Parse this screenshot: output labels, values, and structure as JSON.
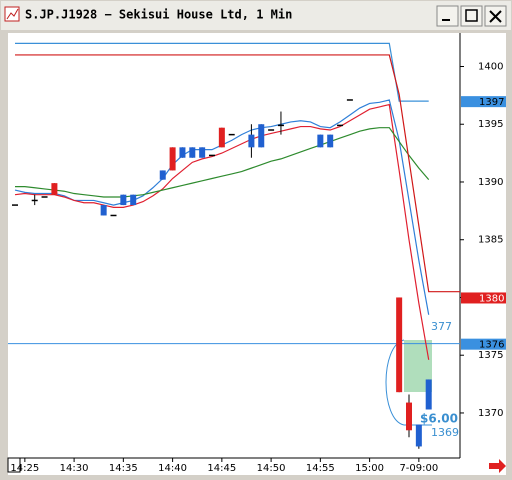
{
  "window": {
    "title": "S.JP.J1928 − Sekisui House Ltd, 1 Min"
  },
  "chart_data": {
    "type": "candlestick",
    "categories": [
      null,
      "14:25",
      null,
      null,
      null,
      null,
      "14:30",
      null,
      null,
      null,
      null,
      "14:35",
      null,
      null,
      null,
      null,
      "14:40",
      null,
      null,
      null,
      null,
      "14:45",
      null,
      null,
      null,
      null,
      "14:50",
      null,
      null,
      null,
      null,
      "14:55",
      null,
      null,
      null,
      null,
      "15:00",
      null,
      null,
      null,
      null,
      "7-09:00",
      null
    ],
    "open": [
      1388.0,
      null,
      1388.4,
      1388.7,
      1389.9,
      null,
      null,
      null,
      null,
      1387.1,
      1387.1,
      1388.0,
      1388.0,
      null,
      null,
      1390.2,
      1393.0,
      1392.1,
      1392.1,
      1392.1,
      1392.3,
      1394.7,
      1394.1,
      null,
      1393.0,
      1393.0,
      1394.5,
      1394.9,
      null,
      null,
      null,
      1393.0,
      1393.0,
      1394.9,
      1397.1,
      null,
      null,
      null,
      null,
      1380.0,
      1370.9,
      1367.1,
      1370.3
    ],
    "high": [
      1388.0,
      null,
      1388.9,
      1388.7,
      1389.9,
      null,
      null,
      null,
      null,
      1388.0,
      1387.1,
      1388.9,
      1388.9,
      null,
      null,
      1391.0,
      1393.0,
      1393.0,
      1393.0,
      1393.0,
      1392.3,
      1394.7,
      1394.1,
      null,
      1395.0,
      1395.0,
      1394.5,
      1396.1,
      null,
      null,
      null,
      1394.1,
      1394.1,
      1394.9,
      1397.1,
      null,
      null,
      null,
      null,
      1380.0,
      1371.6,
      1369.0,
      1372.9
    ],
    "low": [
      1388.0,
      null,
      1388.0,
      1388.7,
      1388.9,
      null,
      null,
      null,
      null,
      1387.1,
      1387.1,
      1388.0,
      1388.0,
      null,
      null,
      1390.2,
      1391.0,
      1392.1,
      1392.1,
      1392.1,
      1392.3,
      1393.0,
      1394.1,
      null,
      1392.1,
      1393.0,
      1394.5,
      1394.1,
      null,
      null,
      null,
      1393.0,
      1393.0,
      1394.9,
      1397.1,
      null,
      null,
      null,
      null,
      1371.8,
      1367.9,
      1366.9,
      1370.3
    ],
    "close": [
      1388.0,
      null,
      1388.4,
      1388.7,
      1388.9,
      null,
      null,
      null,
      null,
      1388.0,
      1387.1,
      1388.9,
      1388.9,
      null,
      null,
      1391.0,
      1391.0,
      1393.0,
      1393.0,
      1393.0,
      1392.3,
      1393.0,
      1394.1,
      null,
      1394.1,
      1395.0,
      1394.5,
      1394.9,
      null,
      null,
      null,
      1394.1,
      1394.1,
      1394.9,
      1397.1,
      null,
      null,
      null,
      null,
      1371.8,
      1368.5,
      1369.0,
      1372.9
    ],
    "up_color": "#2060d0",
    "down_color": "#e02020",
    "series": [
      {
        "color": "#2f7fd8",
        "values": [
          1389.3,
          1389.1,
          1389.0,
          1389.0,
          1389.0,
          1388.8,
          1388.4,
          1388.4,
          1388.4,
          1388.2,
          1388.0,
          1388.2,
          1388.4,
          1388.8,
          1389.5,
          1390.3,
          1391.5,
          1392.3,
          1392.8,
          1392.8,
          1392.8,
          1393.2,
          1393.6,
          1394.1,
          1394.5,
          1394.7,
          1394.8,
          1395.0,
          1395.2,
          1395.3,
          1395.2,
          1394.8,
          1394.7,
          1395.2,
          1395.8,
          1396.4,
          1396.8,
          1396.9,
          1397.1,
          1393.6,
          1388.4,
          1383.2,
          1378.5
        ]
      },
      {
        "color": "#e02030",
        "values": [
          1388.9,
          1389.0,
          1388.9,
          1388.9,
          1388.9,
          1388.7,
          1388.4,
          1388.2,
          1388.2,
          1388.0,
          1387.8,
          1387.8,
          1388.0,
          1388.3,
          1388.8,
          1389.4,
          1390.3,
          1391.0,
          1391.7,
          1392.0,
          1392.2,
          1392.5,
          1392.9,
          1393.3,
          1393.7,
          1394.0,
          1394.2,
          1394.4,
          1394.6,
          1394.8,
          1394.8,
          1394.6,
          1394.5,
          1394.8,
          1395.3,
          1395.8,
          1396.3,
          1396.5,
          1396.7,
          1391.0,
          1385.0,
          1379.5,
          1374.6
        ]
      },
      {
        "color": "#2e8b2e",
        "values": [
          1389.6,
          1389.6,
          1389.5,
          1389.4,
          1389.3,
          1389.2,
          1389.0,
          1388.9,
          1388.8,
          1388.7,
          1388.7,
          1388.7,
          1388.8,
          1388.9,
          1389.1,
          1389.3,
          1389.5,
          1389.7,
          1389.9,
          1390.1,
          1390.3,
          1390.5,
          1390.7,
          1390.9,
          1391.2,
          1391.5,
          1391.8,
          1392.0,
          1392.3,
          1392.6,
          1392.9,
          1393.2,
          1393.5,
          1393.8,
          1394.1,
          1394.4,
          1394.6,
          1394.7,
          1394.7,
          1393.5,
          1392.3,
          1391.2,
          1390.2
        ]
      },
      {
        "color": "#3a90d8",
        "values": [
          1402.0,
          1402.0,
          1402.0,
          1402.0,
          1402.0,
          1402.0,
          1402.0,
          1402.0,
          1402.0,
          1402.0,
          1402.0,
          1402.0,
          1402.0,
          1402.0,
          1402.0,
          1402.0,
          1402.0,
          1402.0,
          1402.0,
          1402.0,
          1402.0,
          1402.0,
          1402.0,
          1402.0,
          1402.0,
          1402.0,
          1402.0,
          1402.0,
          1402.0,
          1402.0,
          1402.0,
          1402.0,
          1402.0,
          1402.0,
          1402.0,
          1402.0,
          1402.0,
          1402.0,
          1402.0,
          1397.0,
          1397.0,
          1397.0,
          1397.0
        ]
      },
      {
        "color": "#d01818",
        "values": [
          1401.0,
          1401.0,
          1401.0,
          1401.0,
          1401.0,
          1401.0,
          1401.0,
          1401.0,
          1401.0,
          1401.0,
          1401.0,
          1401.0,
          1401.0,
          1401.0,
          1401.0,
          1401.0,
          1401.0,
          1401.0,
          1401.0,
          1401.0,
          1401.0,
          1401.0,
          1401.0,
          1401.0,
          1401.0,
          1401.0,
          1401.0,
          1401.0,
          1401.0,
          1401.0,
          1401.0,
          1401.0,
          1401.0,
          1401.0,
          1401.0,
          1401.0,
          1401.0,
          1401.0,
          1401.0,
          1397.6,
          1391.9,
          1386.2,
          1380.5
        ]
      }
    ],
    "tags": [
      {
        "value": 1397,
        "color": "#3a90e0"
      },
      {
        "value": 1380,
        "color": "#e02020"
      },
      {
        "value": 1376,
        "color": "#3a90e0",
        "h_line": true
      }
    ],
    "annotations": [
      "377",
      "$6.00",
      "1369"
    ],
    "ylim": [
      1366.1,
      1402.9
    ],
    "yticks": [
      1370,
      1375,
      1380,
      1385,
      1390,
      1395,
      1400
    ]
  }
}
